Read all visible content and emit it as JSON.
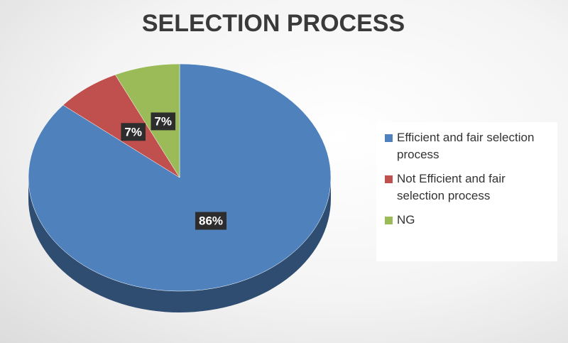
{
  "chart_data": {
    "type": "pie",
    "title": "SELECTION PROCESS",
    "categories": [
      "Efficient and fair selection process",
      "Not Efficient and fair selection process",
      "NG"
    ],
    "values": [
      86,
      7,
      7
    ],
    "value_labels": [
      "86%",
      "7%",
      "7%"
    ],
    "colors": [
      "#4f81bd",
      "#c0504d",
      "#9bbb59"
    ],
    "legend": "right"
  }
}
